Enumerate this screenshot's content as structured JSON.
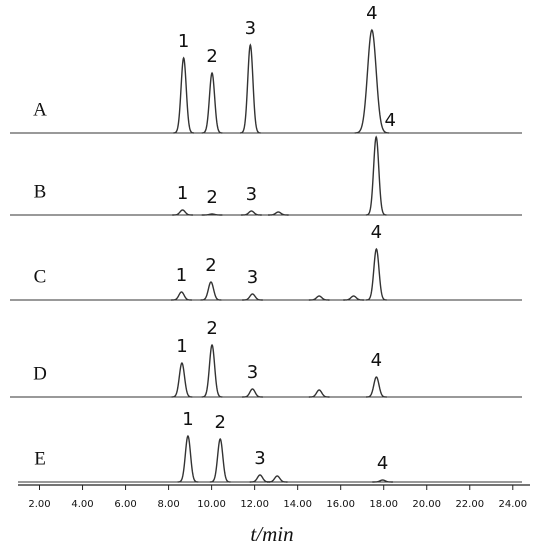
{
  "chart_data": {
    "type": "chromatogram",
    "xlabel": "t/min",
    "xlim": [
      1,
      24.8
    ],
    "xticks": [
      {
        "value": 2,
        "label": "2.00"
      },
      {
        "value": 4,
        "label": "4.00"
      },
      {
        "value": 6,
        "label": "6.00"
      },
      {
        "value": 8,
        "label": "8.00"
      },
      {
        "value": 10,
        "label": "10.00"
      },
      {
        "value": 12,
        "label": "12.00"
      },
      {
        "value": 14,
        "label": "14.00"
      },
      {
        "value": 16,
        "label": "16.00"
      },
      {
        "value": 18,
        "label": "18.00"
      },
      {
        "value": 20,
        "label": "20.00"
      },
      {
        "value": 22,
        "label": "22.00"
      },
      {
        "value": 24,
        "label": "24.00"
      }
    ],
    "ylim": [
      0,
      110
    ],
    "color": "#333333",
    "series": [
      {
        "name": "A",
        "peaks": [
          {
            "x": 8.7,
            "height": 75,
            "label": "1"
          },
          {
            "x": 10.02,
            "height": 60,
            "label": "2"
          },
          {
            "x": 11.8,
            "height": 88,
            "label": "3"
          },
          {
            "x": 17.45,
            "height": 103,
            "label": "4"
          }
        ]
      },
      {
        "name": "B",
        "peaks": [
          {
            "x": 8.65,
            "height": 5,
            "label": "1"
          },
          {
            "x": 10.02,
            "height": 1,
            "label": "2"
          },
          {
            "x": 11.85,
            "height": 4,
            "label": "3"
          },
          {
            "x": 13.1,
            "height": 3
          },
          {
            "x": 17.65,
            "height": 78,
            "label": "4"
          }
        ]
      },
      {
        "name": "C",
        "peaks": [
          {
            "x": 8.6,
            "height": 8,
            "label": "1"
          },
          {
            "x": 9.97,
            "height": 18,
            "label": "2"
          },
          {
            "x": 11.9,
            "height": 6,
            "label": "3"
          },
          {
            "x": 15.0,
            "height": 4
          },
          {
            "x": 16.6,
            "height": 4
          },
          {
            "x": 17.66,
            "height": 51,
            "label": "4"
          }
        ]
      },
      {
        "name": "D",
        "peaks": [
          {
            "x": 8.62,
            "height": 34,
            "label": "1"
          },
          {
            "x": 10.02,
            "height": 52,
            "label": "2"
          },
          {
            "x": 11.9,
            "height": 8,
            "label": "3"
          },
          {
            "x": 15.0,
            "height": 7
          },
          {
            "x": 17.66,
            "height": 20,
            "label": "4"
          }
        ]
      },
      {
        "name": "E",
        "peaks": [
          {
            "x": 8.9,
            "height": 46,
            "label": "1"
          },
          {
            "x": 10.4,
            "height": 43,
            "label": "2"
          },
          {
            "x": 12.25,
            "height": 7,
            "label": "3"
          },
          {
            "x": 13.05,
            "height": 6
          },
          {
            "x": 17.95,
            "height": 2,
            "label": "4"
          }
        ]
      }
    ]
  }
}
